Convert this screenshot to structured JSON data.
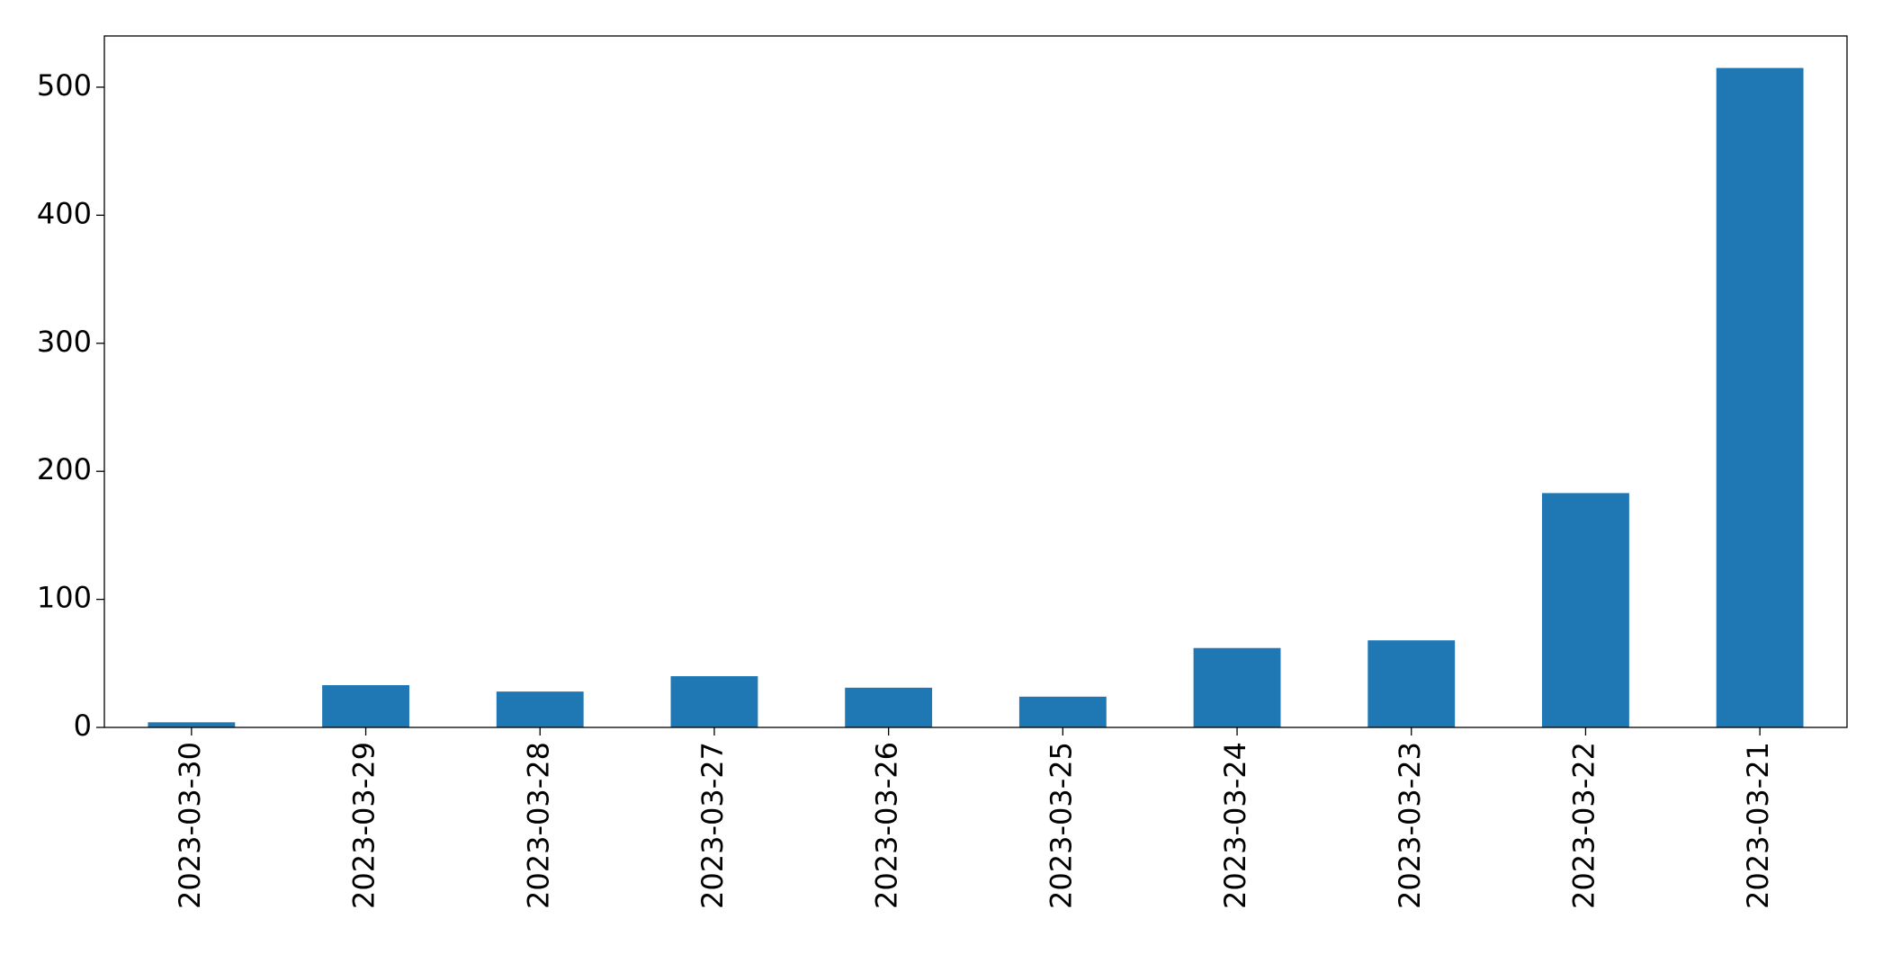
{
  "chart_data": {
    "type": "bar",
    "categories": [
      "2023-03-30",
      "2023-03-29",
      "2023-03-28",
      "2023-03-27",
      "2023-03-26",
      "2023-03-25",
      "2023-03-24",
      "2023-03-23",
      "2023-03-22",
      "2023-03-21"
    ],
    "values": [
      4,
      33,
      28,
      40,
      31,
      24,
      62,
      68,
      183,
      515
    ],
    "color": "#1f77b4",
    "ylim": [
      0,
      540
    ],
    "yticks": [
      0,
      100,
      200,
      300,
      400,
      500
    ],
    "grid": false
  }
}
